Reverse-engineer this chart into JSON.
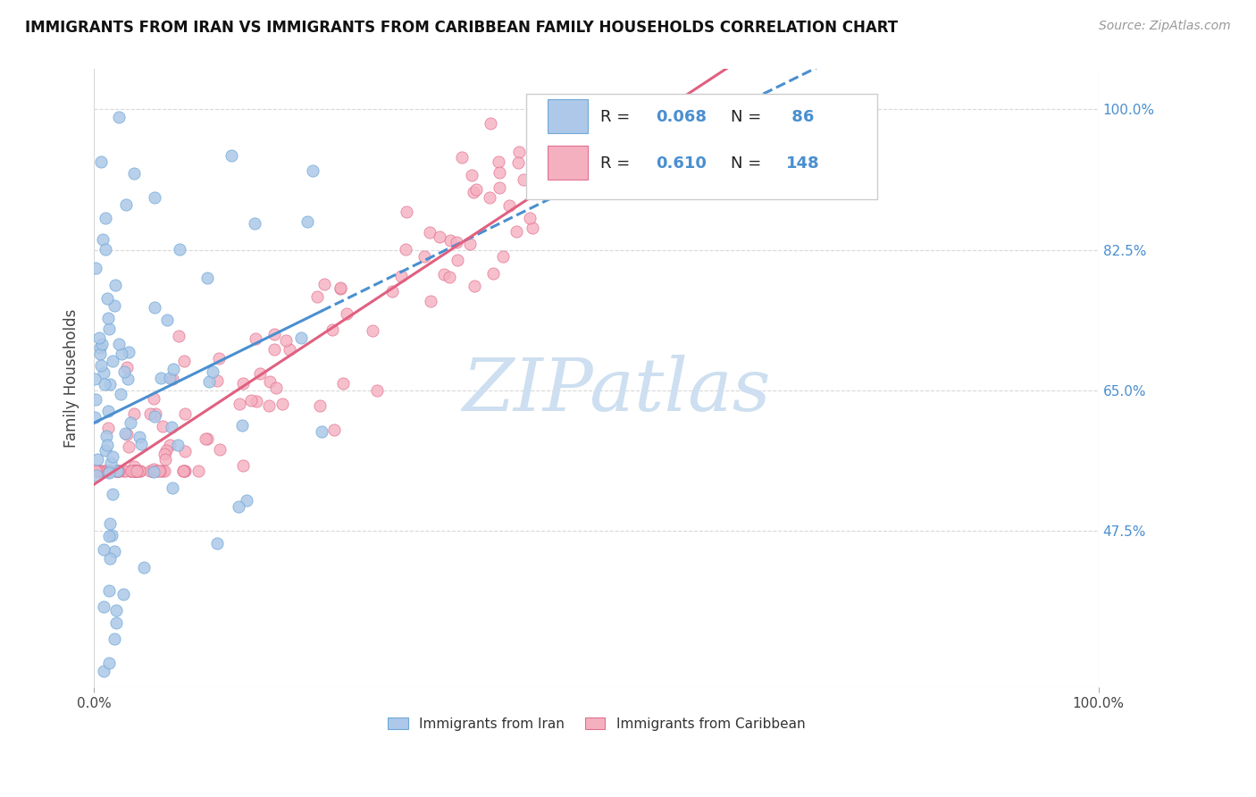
{
  "title": "IMMIGRANTS FROM IRAN VS IMMIGRANTS FROM CARIBBEAN FAMILY HOUSEHOLDS CORRELATION CHART",
  "source": "Source: ZipAtlas.com",
  "ylabel": "Family Households",
  "iran_color": "#adc8e8",
  "iran_edge_color": "#6fa8d8",
  "iran_line_color": "#4a8fd0",
  "carib_color": "#f5b0c0",
  "carib_edge_color": "#e07090",
  "carib_line_color": "#e06080",
  "legend_blue": "#4a8fd0",
  "watermark_color": "#cddff0",
  "ytick_color": "#4a8fd0",
  "iran_R": 0.068,
  "iran_N": 86,
  "carib_R": 0.61,
  "carib_N": 148,
  "xlim": [
    0.0,
    1.0
  ],
  "ylim": [
    0.28,
    1.05
  ],
  "yticks": [
    0.475,
    0.65,
    0.825,
    1.0
  ],
  "ytick_labels": [
    "47.5%",
    "65.0%",
    "82.5%",
    "100.0%"
  ],
  "xtick_labels": [
    "0.0%",
    "100.0%"
  ],
  "grid_color": "#d8d8d8",
  "title_fontsize": 12,
  "source_fontsize": 10,
  "tick_fontsize": 11,
  "legend_fontsize": 13
}
